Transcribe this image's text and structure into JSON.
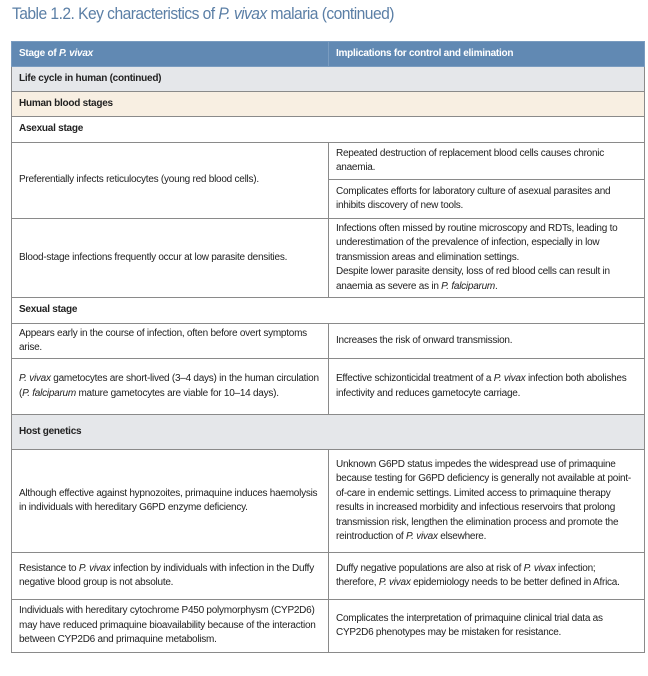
{
  "title": [
    {
      "t": "Table 1.2. Key characteristics of "
    },
    {
      "t": "P. vivax",
      "i": true
    },
    {
      "t": " malaria (continued)"
    }
  ],
  "header": {
    "col1": [
      {
        "t": "Stage of "
      },
      {
        "t": "P. vivax",
        "i": true
      }
    ],
    "col2": [
      {
        "t": "Implications for control and elimination"
      }
    ]
  },
  "sections": {
    "life_cycle": "Life cycle in human (continued)",
    "blood_stages": "Human blood stages",
    "asexual": "Asexual stage",
    "sexual": "Sexual stage",
    "host_genetics": "Host genetics"
  },
  "rows": {
    "reticulocytes": {
      "stage": [
        {
          "t": "Preferentially infects reticulocytes (young red blood cells)."
        }
      ],
      "impl1": [
        {
          "t": "Repeated destruction of replacement blood cells causes chronic anaemia."
        }
      ],
      "impl2": [
        {
          "t": "Complicates efforts for laboratory culture of asexual parasites and inhibits discovery of new tools."
        }
      ]
    },
    "low_density": {
      "stage": [
        {
          "t": "Blood-stage infections frequently occur at low parasite densities."
        }
      ],
      "impl1": [
        {
          "t": "Infections often missed by routine microscopy and RDTs, leading to underestimation of the prevalence of infection, especially in low transmission areas and elimination settings."
        }
      ],
      "impl2": [
        {
          "t": "Despite lower parasite density, loss of red blood cells can result in anaemia as severe as in "
        },
        {
          "t": "P. falciparum",
          "i": true
        },
        {
          "t": "."
        }
      ]
    },
    "early": {
      "stage": [
        {
          "t": "Appears early in the course of infection, often before overt symptoms arise."
        }
      ],
      "impl1": [
        {
          "t": "Increases the risk of onward transmission."
        }
      ]
    },
    "gametocytes": {
      "stage": [
        {
          "t": "P. vivax",
          "i": true
        },
        {
          "t": " gametocytes are short-lived (3–4 days) in the human circulation ("
        },
        {
          "t": "P. falciparum",
          "i": true
        },
        {
          "t": " mature gametocytes are viable for 10–14 days)."
        }
      ],
      "impl1": [
        {
          "t": "Effective schizonticidal treatment of a "
        },
        {
          "t": "P. vivax",
          "i": true
        },
        {
          "t": " infection both abolishes infectivity and reduces gametocyte carriage."
        }
      ]
    },
    "g6pd": {
      "stage": [
        {
          "t": "Although effective against hypnozoites, primaquine induces haemolysis in individuals with hereditary G6PD enzyme deficiency."
        }
      ],
      "impl1": [
        {
          "t": "Unknown G6PD status impedes the widespread use of primaquine because testing for G6PD deficiency is generally not available at point-of-care in endemic settings. Limited access to primaquine therapy results in increased morbidity and infectious reservoirs that prolong transmission risk, lengthen the elimination process and promote the reintroduction of "
        },
        {
          "t": "P. vivax",
          "i": true
        },
        {
          "t": " elsewhere."
        }
      ]
    },
    "duffy": {
      "stage": [
        {
          "t": "Resistance to "
        },
        {
          "t": "P. vivax",
          "i": true
        },
        {
          "t": " infection by individuals with infection in the Duffy negative blood group is not absolute."
        }
      ],
      "impl1": [
        {
          "t": "Duffy negative populations are also at risk of "
        },
        {
          "t": "P. vivax",
          "i": true
        },
        {
          "t": " infection; therefore, "
        },
        {
          "t": "P. vivax",
          "i": true
        },
        {
          "t": " epidemiology needs to be better defined in Africa."
        }
      ]
    },
    "cyp2d6": {
      "stage": [
        {
          "t": "Individuals with hereditary cytochrome P450 polymorphysm (CYP2D6) may have reduced primaquine bioavailability because of the interaction between CYP2D6 and primaquine metabolism."
        }
      ],
      "impl1": [
        {
          "t": "Complicates the interpretation of primaquine clinical trial data as CYP2D6 phenotypes may be mistaken for resistance."
        }
      ]
    }
  },
  "colors": {
    "title": "#5b7fa6",
    "header_bg": "#6189b3",
    "section_gray": "#e5e7ea",
    "section_beige": "#f8efe2"
  }
}
